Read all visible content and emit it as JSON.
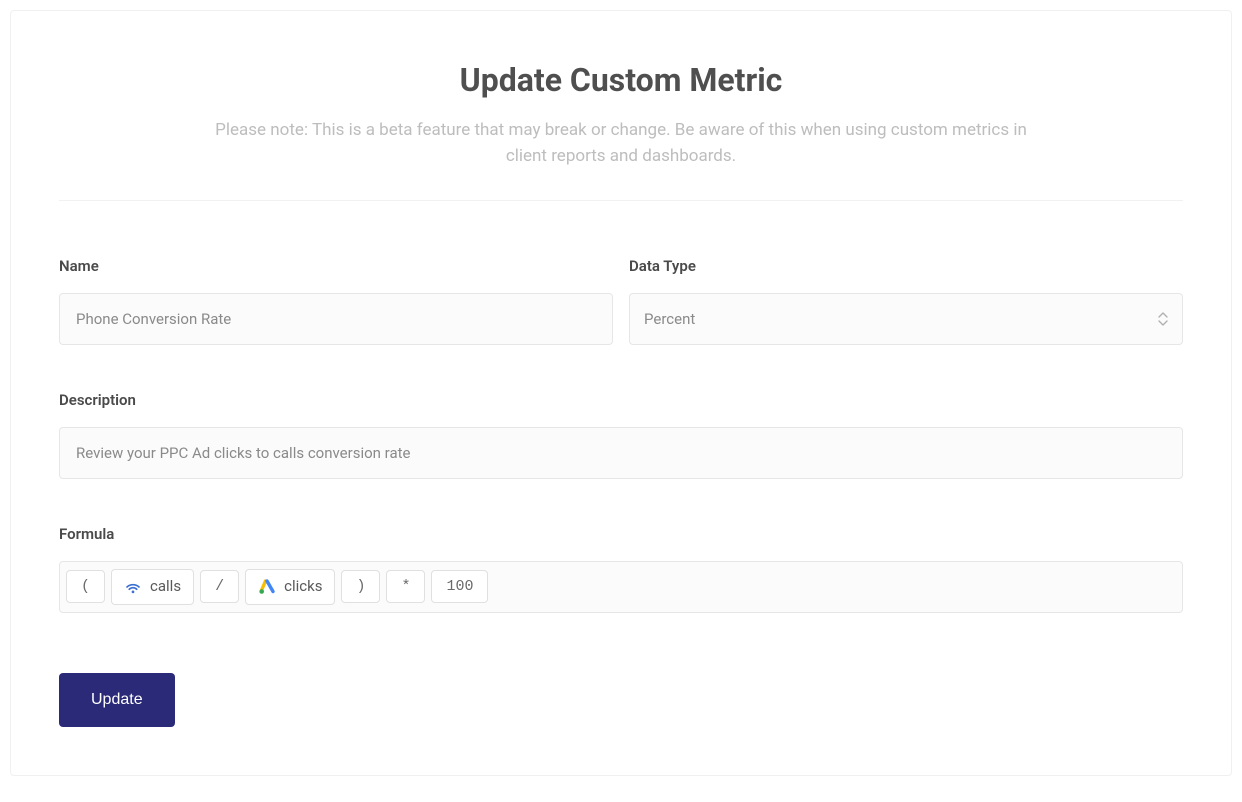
{
  "header": {
    "title": "Update Custom Metric",
    "subtitle": "Please note: This is a beta feature that may break or change. Be aware of this when using custom metrics in client reports and dashboards."
  },
  "fields": {
    "name": {
      "label": "Name",
      "value": "Phone Conversion Rate"
    },
    "dataType": {
      "label": "Data Type",
      "selected": "Percent"
    },
    "description": {
      "label": "Description",
      "value": "Review your PPC Ad clicks to calls conversion rate"
    },
    "formula": {
      "label": "Formula",
      "tokens": [
        {
          "kind": "op",
          "text": "("
        },
        {
          "kind": "metric",
          "icon": "calls-source-icon",
          "text": "calls",
          "icon_color": "#3b6fd1"
        },
        {
          "kind": "op",
          "text": "/"
        },
        {
          "kind": "metric",
          "icon": "ads-source-icon",
          "text": "clicks",
          "icon_color": "multi"
        },
        {
          "kind": "op",
          "text": ")"
        },
        {
          "kind": "op",
          "text": "*"
        },
        {
          "kind": "op",
          "text": "100"
        }
      ]
    }
  },
  "actions": {
    "submit_label": "Update"
  },
  "colors": {
    "card_border": "#f0f0f0",
    "input_border": "#e6e6e6",
    "input_bg": "#fbfbfb",
    "title_color": "#4f4f4f",
    "subtitle_color": "#bdbdbd",
    "label_color": "#4a4a4a",
    "value_color": "#8a8a8a",
    "button_bg": "#2b2a78",
    "button_text": "#ffffff",
    "ads_icon_colors": [
      "#4285F4",
      "#FBBC04",
      "#34A853"
    ]
  }
}
